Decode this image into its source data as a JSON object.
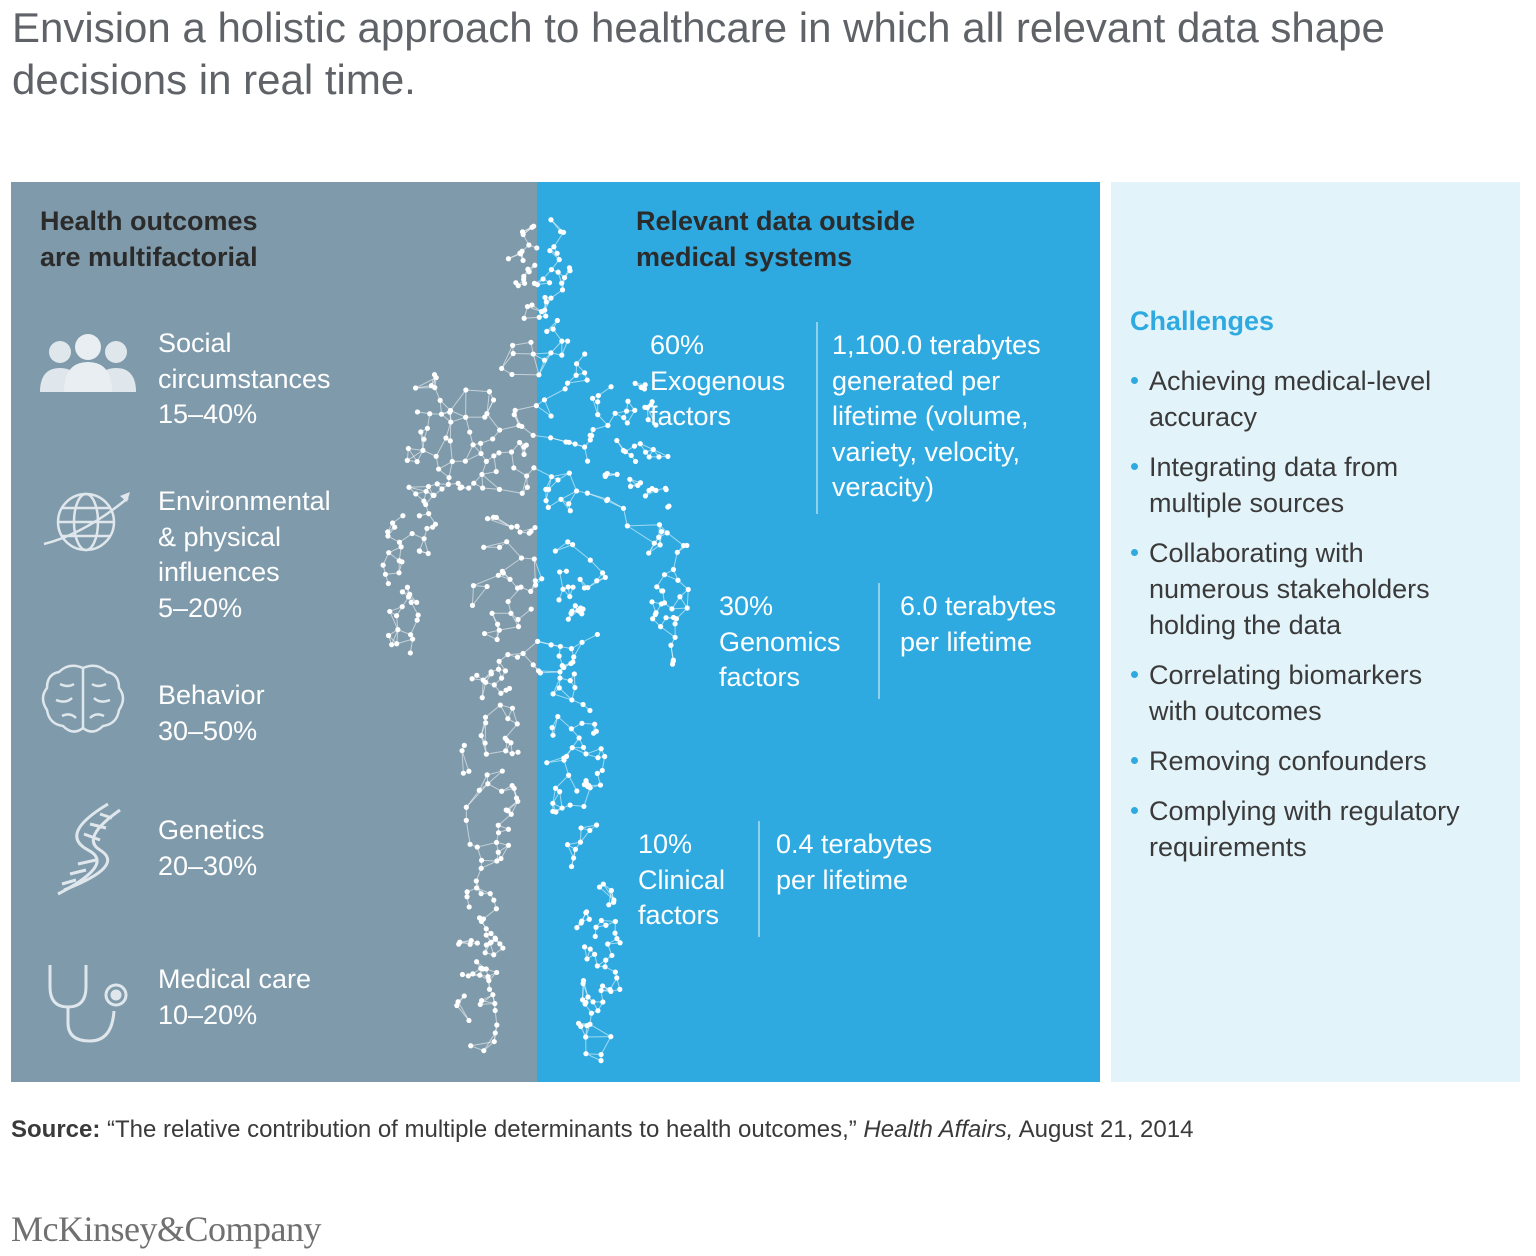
{
  "title": "Envision a holistic approach to healthcare in which all relevant data shape decisions in real time.",
  "left_panel": {
    "heading": [
      "Health outcomes",
      "are multifactorial"
    ],
    "factors": [
      {
        "icon": "people-icon",
        "lines": [
          "Social",
          "circumstances"
        ],
        "range": "15–40%"
      },
      {
        "icon": "globe-icon",
        "lines": [
          "Environmental",
          "& physical",
          "influences"
        ],
        "range": "5–20%"
      },
      {
        "icon": "brain-icon",
        "lines": [
          "Behavior"
        ],
        "range": "30–50%"
      },
      {
        "icon": "dna-icon",
        "lines": [
          "Genetics"
        ],
        "range": "20–30%"
      },
      {
        "icon": "stethoscope-icon",
        "lines": [
          "Medical care"
        ],
        "range": "10–20%"
      }
    ]
  },
  "mid_panel": {
    "heading": [
      "Relevant data outside",
      "medical systems"
    ],
    "blocks": [
      {
        "pct": [
          "60%",
          "Exogenous",
          "factors"
        ],
        "desc": [
          "1,100.0 terabytes",
          "generated per",
          "lifetime (volume,",
          "variety, velocity,",
          "veracity)"
        ]
      },
      {
        "pct": [
          "30%",
          "Genomics",
          "factors"
        ],
        "desc": [
          "6.0 terabytes",
          "per lifetime"
        ]
      },
      {
        "pct": [
          "10%",
          "Clinical",
          "factors"
        ],
        "desc": [
          "0.4 terabytes",
          "per lifetime"
        ]
      }
    ]
  },
  "challenges": {
    "title": "Challenges",
    "items": [
      [
        "Achieving medical-level",
        "accuracy"
      ],
      [
        "Integrating data from",
        "multiple sources"
      ],
      [
        "Collaborating with",
        "numerous stakeholders",
        "holding the data"
      ],
      [
        "Correlating biomarkers",
        "with outcomes"
      ],
      [
        "Removing confounders"
      ],
      [
        "Complying with regulatory",
        "requirements"
      ]
    ]
  },
  "source": {
    "label": "Source:",
    "quote": "“The relative contribution of multiple determinants to health outcomes,”",
    "journal": "Health Affairs,",
    "date": "August 21, 2014"
  },
  "logo": "McKinsey&Company",
  "colors": {
    "left_panel": "#7f9aaa",
    "mid_panel": "#2eaae1",
    "right_panel": "#e3f3fa",
    "accent": "#2eaae1"
  }
}
